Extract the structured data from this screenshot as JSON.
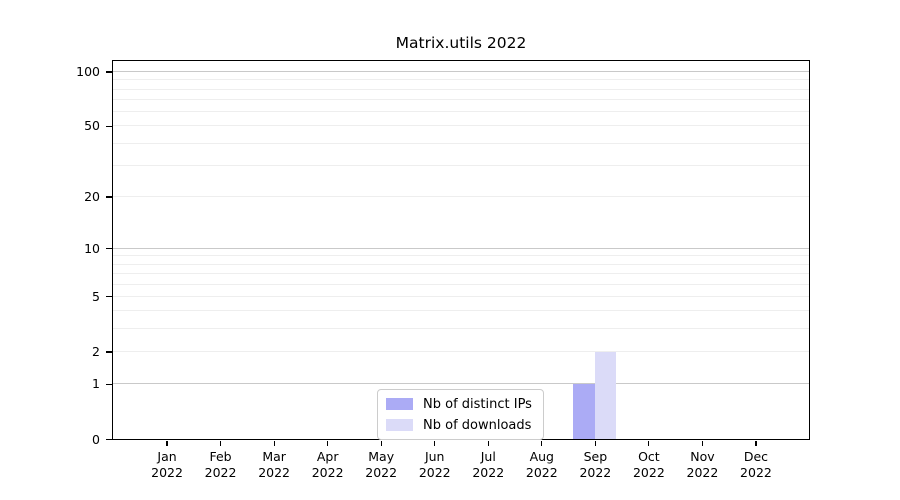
{
  "title": "Matrix.utils 2022",
  "chart_data": {
    "type": "bar",
    "title": "Matrix.utils 2022",
    "xlabel": "",
    "ylabel": "",
    "categories": [
      "Jan",
      "Feb",
      "Mar",
      "Apr",
      "May",
      "Jun",
      "Jul",
      "Aug",
      "Sep",
      "Oct",
      "Nov",
      "Dec"
    ],
    "year_label": "2022",
    "series": [
      {
        "name": "Nb of distinct IPs",
        "color": "#ababf5",
        "values": [
          0,
          0,
          0,
          0,
          0,
          0,
          0,
          0,
          1,
          0,
          0,
          0
        ]
      },
      {
        "name": "Nb of downloads",
        "color": "#dbdbf8",
        "values": [
          0,
          0,
          0,
          0,
          0,
          0,
          0,
          0,
          2,
          0,
          0,
          0
        ]
      }
    ],
    "y_scale": "log1p",
    "y_max": 114.3,
    "y_ticks": [
      0,
      1,
      2,
      5,
      10,
      20,
      50,
      100
    ],
    "y_major_gridlines": [
      1,
      10,
      100
    ],
    "y_minor_gridlines": [
      2,
      3,
      4,
      5,
      6,
      7,
      8,
      9,
      20,
      30,
      40,
      50,
      60,
      70,
      80,
      90
    ],
    "legend_position": "lower center inside",
    "grid": "on",
    "colors": {
      "frame": "#000000",
      "major_grid": "#c9c9c9",
      "minor_grid": "#eeeeee",
      "text": "#000000"
    }
  }
}
